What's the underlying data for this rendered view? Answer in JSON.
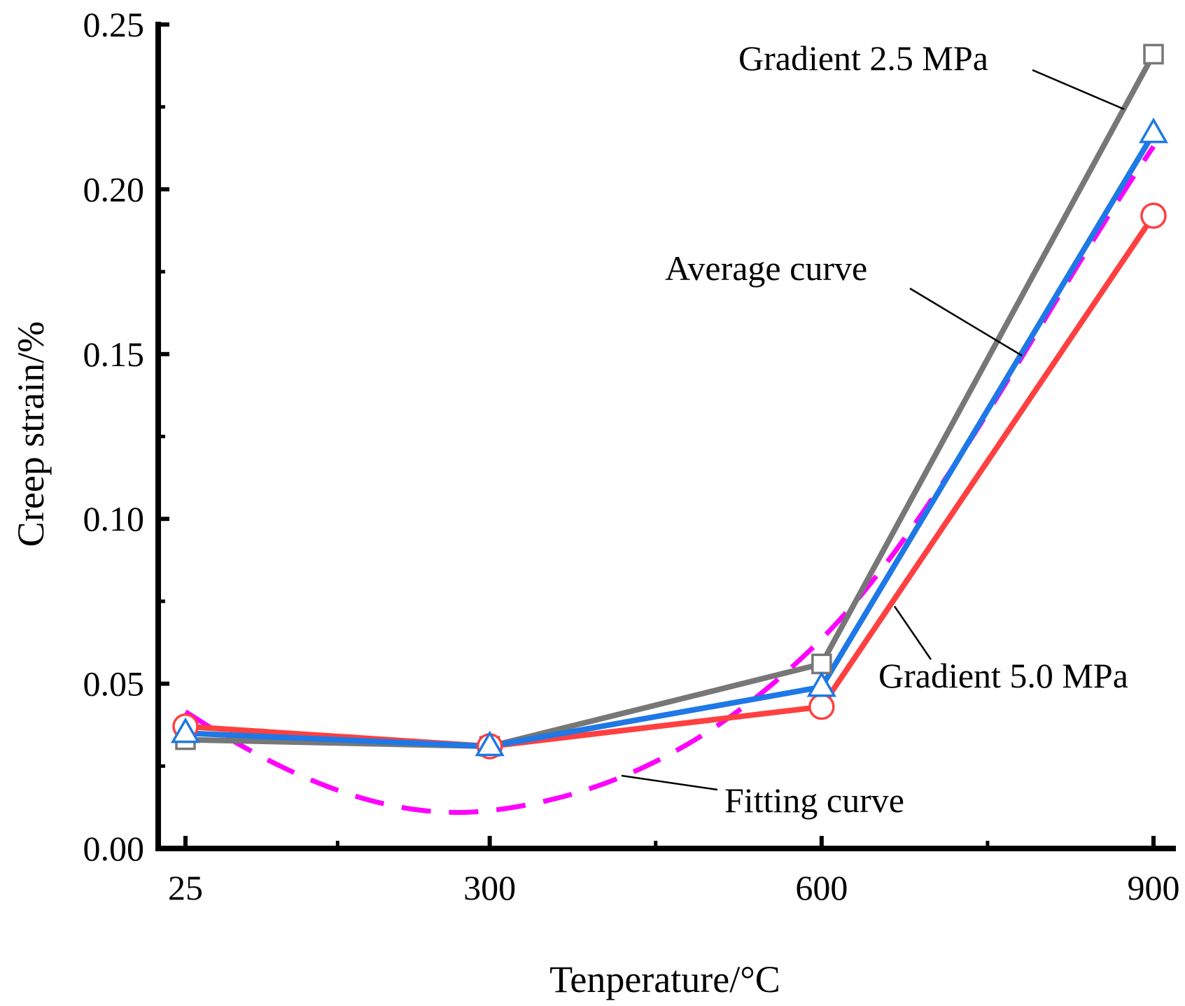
{
  "chart_data": {
    "type": "line",
    "title": "",
    "xlabel": "Tenperature/°C",
    "ylabel": "Creep strain/%",
    "categories": [
      "25",
      "300",
      "600",
      "900"
    ],
    "x": [
      25,
      300,
      600,
      900
    ],
    "xlim": [
      0,
      925
    ],
    "ylim": [
      0,
      0.25
    ],
    "y_ticks": [
      "0.00",
      "0.05",
      "0.10",
      "0.15",
      "0.20",
      "0.25"
    ],
    "x_ticks": [
      "25",
      "300",
      "600",
      "900"
    ],
    "grid": false,
    "series": [
      {
        "name": "Gradient 2.5 MPa",
        "values": [
          0.033,
          0.031,
          0.056,
          0.241
        ],
        "marker": "square",
        "color": "#777777",
        "style": "solid"
      },
      {
        "name": "Gradient 5.0 MPa",
        "values": [
          0.037,
          0.031,
          0.043,
          0.192
        ],
        "marker": "circle",
        "color": "#ff4040",
        "style": "solid"
      },
      {
        "name": "Average curve",
        "values": [
          0.035,
          0.031,
          0.049,
          0.217
        ],
        "marker": "triangle",
        "color": "#1e78e6",
        "style": "solid"
      },
      {
        "name": "Fitting curve",
        "values": [
          0.0415,
          0.0115,
          0.0636,
          0.213
        ],
        "marker": "none",
        "color": "#ff00ff",
        "style": "dashed",
        "smooth": true
      }
    ],
    "annotations": [
      {
        "text": "Gradient 2.5 MPa",
        "target_series": "Gradient 2.5 MPa"
      },
      {
        "text": "Average curve",
        "target_series": "Average curve"
      },
      {
        "text": "Gradient 5.0 MPa",
        "target_series": "Gradient 5.0 MPa"
      },
      {
        "text": "Fitting curve",
        "target_series": "Fitting curve"
      }
    ]
  }
}
